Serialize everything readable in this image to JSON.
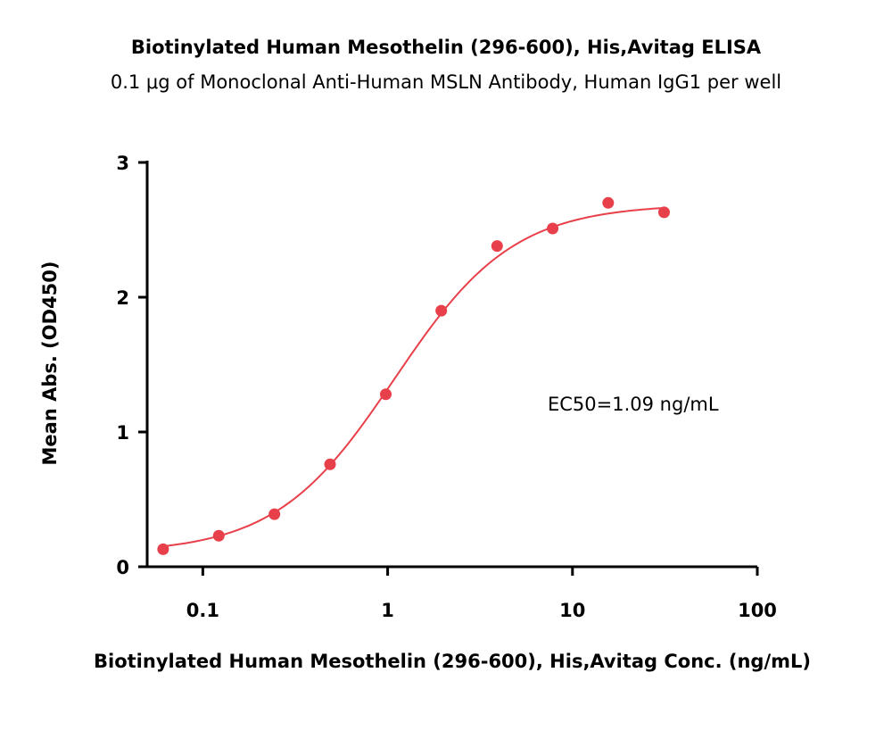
{
  "chart_data": {
    "type": "scatter",
    "title": "Biotinylated Human Mesothelin (296-600), His,Avitag ELISA",
    "subtitle": "0.1 μg of Monoclonal Anti-Human MSLN Antibody, Human IgG1 per well",
    "xlabel": "Biotinylated Human Mesothelin (296-600), His,Avitag Conc. (ng/mL)",
    "ylabel": "Mean Abs. (OD450)",
    "xscale": "log",
    "xlim": [
      0.05,
      100
    ],
    "ylim": [
      0,
      3
    ],
    "x_ticks": [
      {
        "value": 0.1,
        "label": "0.1"
      },
      {
        "value": 1,
        "label": "1"
      },
      {
        "value": 10,
        "label": "10"
      },
      {
        "value": 100,
        "label": "100"
      }
    ],
    "y_ticks": [
      {
        "value": 0,
        "label": "0"
      },
      {
        "value": 1,
        "label": "1"
      },
      {
        "value": 2,
        "label": "2"
      },
      {
        "value": 3,
        "label": "3"
      }
    ],
    "grid": false,
    "series": [
      {
        "color": "#e8404a",
        "points": [
          {
            "x": 0.061,
            "y": 0.13
          },
          {
            "x": 0.122,
            "y": 0.23
          },
          {
            "x": 0.244,
            "y": 0.39
          },
          {
            "x": 0.488,
            "y": 0.76
          },
          {
            "x": 0.977,
            "y": 1.28
          },
          {
            "x": 1.95,
            "y": 1.9
          },
          {
            "x": 3.91,
            "y": 2.38
          },
          {
            "x": 7.81,
            "y": 2.51
          },
          {
            "x": 15.6,
            "y": 2.7
          },
          {
            "x": 31.3,
            "y": 2.63
          }
        ],
        "fit": {
          "type": "4PL",
          "bottom": 0.1,
          "top": 2.69,
          "ec50": 1.09,
          "hill": 1.35
        }
      }
    ],
    "annotation": "EC50=1.09 ng/mL"
  }
}
